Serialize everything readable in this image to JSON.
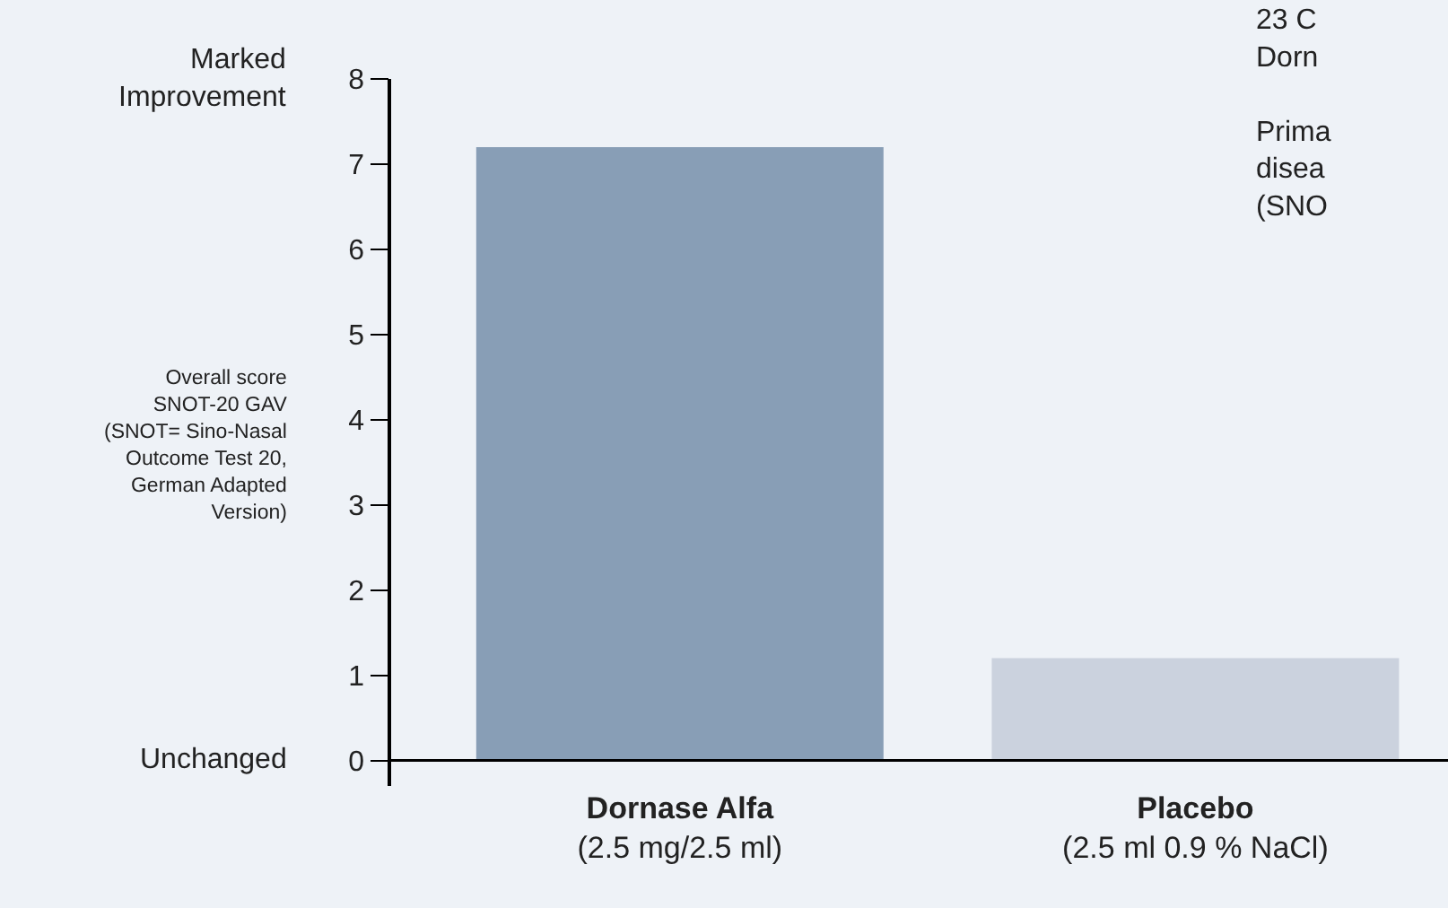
{
  "chart_data": {
    "type": "bar",
    "categories": [
      "Dornase Alfa\n(2.5 mg/2.5 ml)",
      "Placebo\n(2.5 ml 0.9 % NaCl)"
    ],
    "values": [
      7.2,
      1.2
    ],
    "colors": [
      "#889eb6",
      "#cbd2de"
    ],
    "ylabel": "Overall score\nSNOT-20 GAV\n(SNOT= Sino-Nasal\nOutcome Test 20,\nGerman Adapted\nVersion)",
    "ylim": [
      -0.3,
      8
    ],
    "yticks": [
      0,
      1,
      2,
      3,
      4,
      5,
      6,
      7,
      8
    ],
    "annotations": [
      "Marked\nImprovement",
      "Unchanged",
      "23 C\nDorn\n\nPrima\ndisea\n(SNO"
    ],
    "grid": false
  }
}
